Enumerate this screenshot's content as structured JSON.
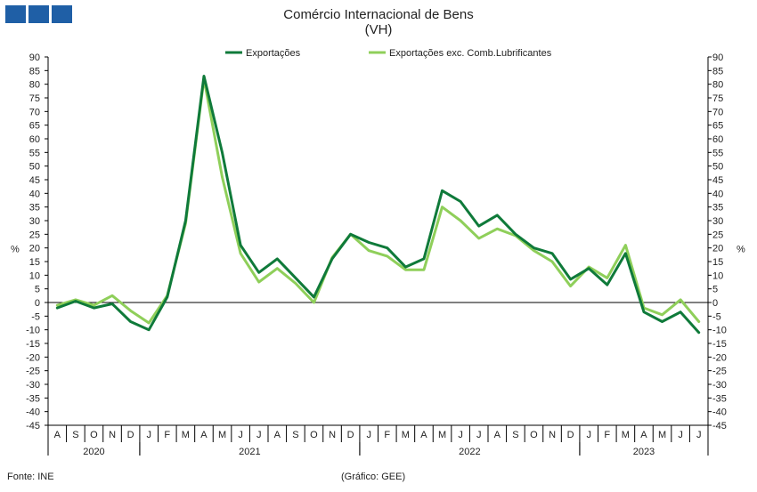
{
  "header": {
    "title": "Comércio Internacional de Bens",
    "subtitle": "(VH)"
  },
  "footer": {
    "source": "Fonte: INE",
    "credit": "(Gráfico: GEE)"
  },
  "chart_data": {
    "type": "line",
    "title": "Comércio Internacional de Bens (VH)",
    "ylabel_left": "%",
    "ylabel_right": "%",
    "ylim": [
      -45,
      90
    ],
    "ytick_step": 5,
    "categories": [
      "A",
      "S",
      "O",
      "N",
      "D",
      "J",
      "F",
      "M",
      "A",
      "M",
      "J",
      "J",
      "A",
      "S",
      "O",
      "N",
      "D",
      "J",
      "F",
      "M",
      "A",
      "M",
      "J",
      "J",
      "A",
      "S",
      "O",
      "N",
      "D",
      "J",
      "F",
      "M",
      "A",
      "M",
      "J",
      "J"
    ],
    "years": [
      {
        "label": "2020",
        "start": 0,
        "end": 4
      },
      {
        "label": "2021",
        "start": 5,
        "end": 16
      },
      {
        "label": "2022",
        "start": 17,
        "end": 28
      },
      {
        "label": "2023",
        "start": 29,
        "end": 35
      }
    ],
    "series": [
      {
        "name": "Exportações",
        "color": "#0f7a3a",
        "values": [
          -2,
          0.5,
          -2,
          -0.5,
          -7,
          -10,
          2,
          30,
          83,
          55,
          21,
          11,
          16,
          9,
          2,
          16,
          25,
          22,
          20,
          13,
          16,
          41,
          37,
          28,
          32,
          25,
          20,
          18,
          8.5,
          12.5,
          6.5,
          18,
          -3.5,
          -7,
          -3.5,
          -11
        ]
      },
      {
        "name": "Exportações exc. Comb.Lubrificantes",
        "color": "#8fcf5a",
        "values": [
          -1,
          1,
          -1,
          2.5,
          -3,
          -7.5,
          2.5,
          29,
          82,
          46,
          18,
          7.5,
          12.5,
          7,
          0,
          16.5,
          25,
          19,
          17,
          12,
          12,
          35,
          30,
          23.5,
          27,
          24.5,
          19,
          15,
          6,
          13,
          9,
          21,
          -2,
          -4.5,
          1,
          -7
        ]
      }
    ]
  }
}
